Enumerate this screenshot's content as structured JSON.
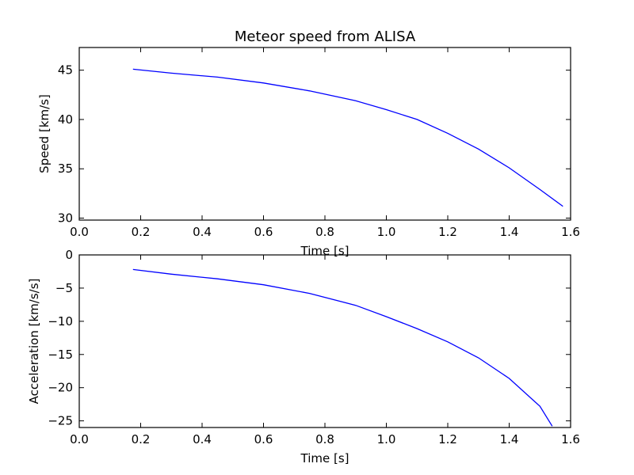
{
  "chart_data": [
    {
      "type": "line",
      "title": "Meteor speed from  ALISA",
      "xlabel": "Time [s]",
      "ylabel": "Speed [km/s]",
      "xlim": [
        0.0,
        1.6
      ],
      "ylim": [
        29.8,
        47.3
      ],
      "xticks": [
        0.0,
        0.2,
        0.4,
        0.6,
        0.8,
        1.0,
        1.2,
        1.4,
        1.6
      ],
      "xtick_labels": [
        "0.0",
        "0.2",
        "0.4",
        "0.6",
        "0.8",
        "1.0",
        "1.2",
        "1.4",
        "1.6"
      ],
      "yticks": [
        30,
        35,
        40,
        45
      ],
      "ytick_labels": [
        "30",
        "35",
        "40",
        "45"
      ],
      "grid": false,
      "color": "#0000ff",
      "series": [
        {
          "x": [
            0.175,
            0.3,
            0.45,
            0.6,
            0.75,
            0.9,
            1.0,
            1.1,
            1.2,
            1.3,
            1.4,
            1.5,
            1.575
          ],
          "y": [
            45.1,
            44.7,
            44.3,
            43.7,
            42.9,
            41.9,
            41.0,
            40.0,
            38.6,
            37.0,
            35.1,
            32.9,
            31.2
          ]
        }
      ]
    },
    {
      "type": "line",
      "title": "",
      "xlabel": "Time [s]",
      "ylabel": "Acceleration [km/s/s]",
      "xlim": [
        0.0,
        1.6
      ],
      "ylim": [
        -26,
        0
      ],
      "xticks": [
        0.0,
        0.2,
        0.4,
        0.6,
        0.8,
        1.0,
        1.2,
        1.4,
        1.6
      ],
      "xtick_labels": [
        "0.0",
        "0.2",
        "0.4",
        "0.6",
        "0.8",
        "1.0",
        "1.2",
        "1.4",
        "1.6"
      ],
      "yticks": [
        0,
        -5,
        -10,
        -15,
        -20,
        -25
      ],
      "ytick_labels": [
        "0",
        "−5",
        "−10",
        "−15",
        "−20",
        "−25"
      ],
      "grid": false,
      "color": "#0000ff",
      "series": [
        {
          "x": [
            0.175,
            0.3,
            0.45,
            0.6,
            0.75,
            0.9,
            1.0,
            1.1,
            1.2,
            1.3,
            1.4,
            1.5,
            1.54
          ],
          "y": [
            -2.2,
            -2.9,
            -3.6,
            -4.5,
            -5.8,
            -7.6,
            -9.3,
            -11.1,
            -13.1,
            -15.5,
            -18.6,
            -22.8,
            -25.8
          ]
        }
      ]
    }
  ]
}
